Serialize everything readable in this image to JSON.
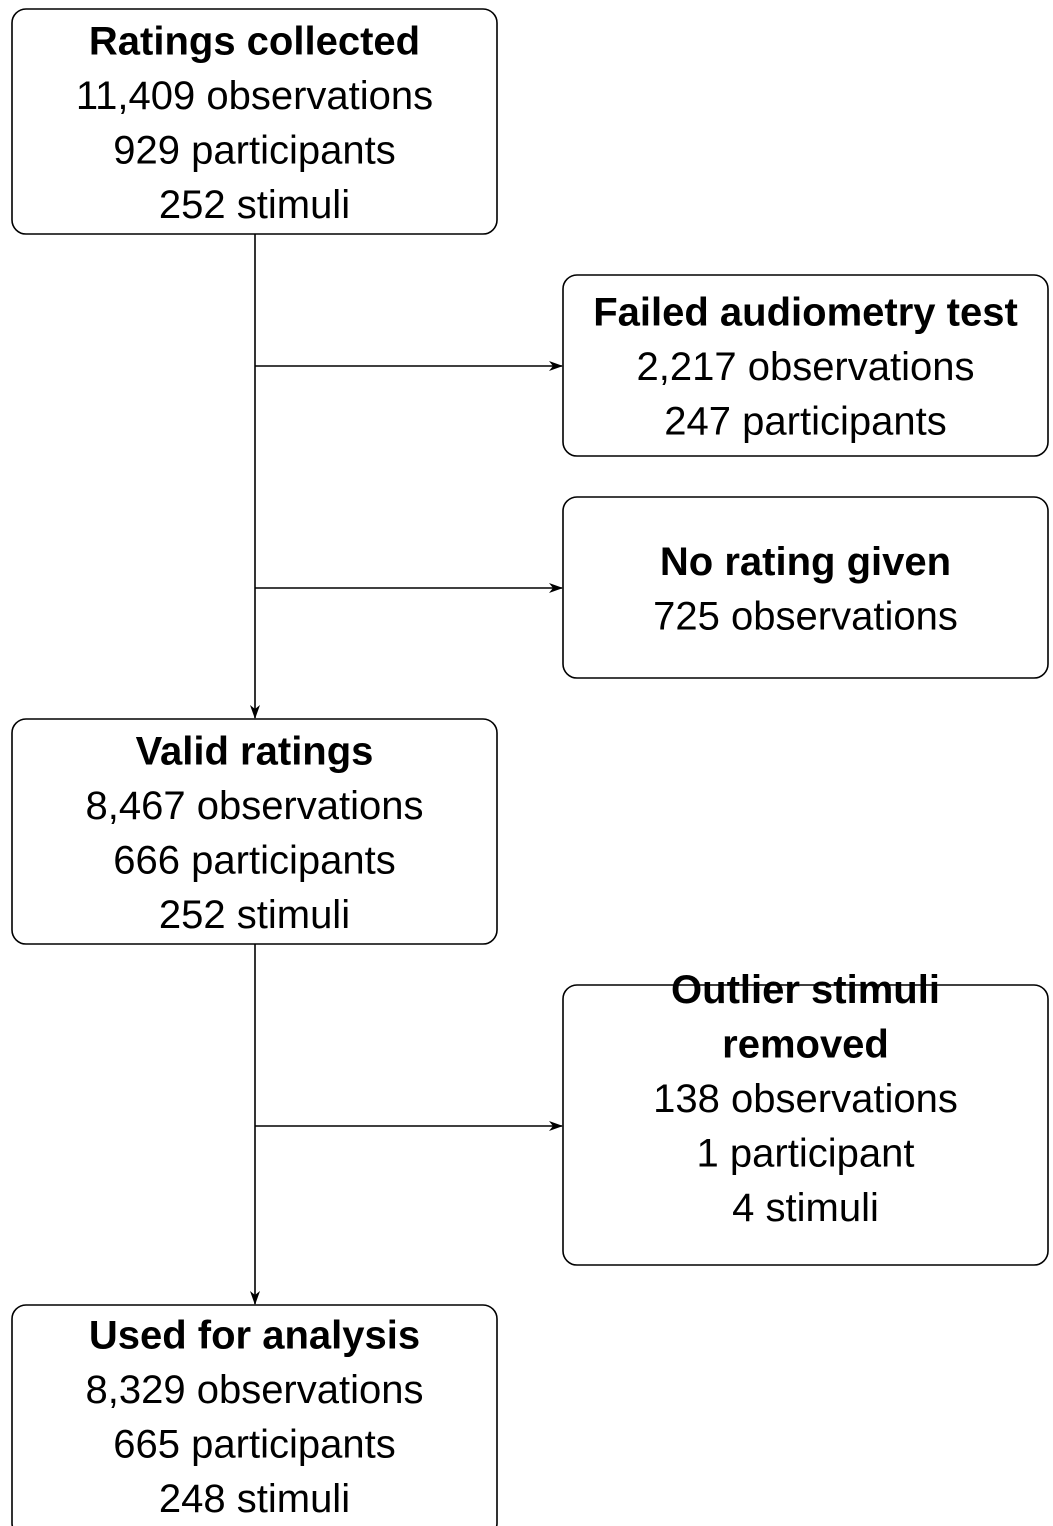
{
  "nodes": [
    {
      "title": [
        "Ratings collected"
      ],
      "details": [
        "11,409 observations",
        "929 participants",
        "252 stimuli"
      ]
    },
    {
      "title": [
        "Failed audiometry test"
      ],
      "details": [
        "2,217 observations",
        "247 participants"
      ]
    },
    {
      "title": [
        "No rating given"
      ],
      "details": [
        "725 observations"
      ]
    },
    {
      "title": [
        "Valid ratings"
      ],
      "details": [
        "8,467 observations",
        "666 participants",
        "252 stimuli"
      ]
    },
    {
      "title": [
        "Outlier stimuli",
        "removed"
      ],
      "details": [
        "138 observations",
        "1 participant",
        "4 stimuli"
      ]
    },
    {
      "title": [
        "Used for analysis"
      ],
      "details": [
        "8,329 observations",
        "665 participants",
        "248 stimuli"
      ]
    }
  ]
}
